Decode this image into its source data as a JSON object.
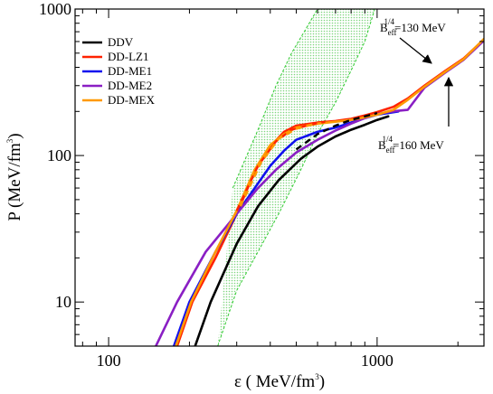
{
  "chart_data": {
    "type": "line",
    "x_scale": "log",
    "y_scale": "log",
    "xlim": [
      75,
      2500
    ],
    "ylim": [
      5,
      1000
    ],
    "xlabel": "ε ( MeV/fm",
    "xlabel_sup": "3",
    "xlabel_end": ")",
    "ylabel": "P (MeV/fm",
    "ylabel_sup": "3",
    "ylabel_end": ")",
    "x_ticks": [
      {
        "value": 100,
        "label": "100"
      },
      {
        "value": 1000,
        "label": "1000"
      }
    ],
    "y_ticks": [
      {
        "value": 10,
        "label": "10"
      },
      {
        "value": 100,
        "label": "100"
      },
      {
        "value": 1000,
        "label": "1000"
      }
    ],
    "legend_position": "top-left",
    "band": {
      "color": "#33cc33",
      "fill": "#9be39b",
      "upper": [
        [
          290,
          60
        ],
        [
          360,
          150
        ],
        [
          420,
          300
        ],
        [
          480,
          500
        ],
        [
          540,
          720
        ],
        [
          600,
          1000
        ]
      ],
      "lower": [
        [
          255,
          5
        ],
        [
          300,
          12
        ],
        [
          360,
          22
        ],
        [
          430,
          40
        ],
        [
          520,
          80
        ],
        [
          600,
          140
        ],
        [
          700,
          230
        ],
        [
          800,
          380
        ],
        [
          900,
          600
        ],
        [
          980,
          1000
        ]
      ]
    },
    "series": [
      {
        "name": "DDV",
        "color": "#000000",
        "width": 2.6,
        "points": [
          [
            210,
            5
          ],
          [
            240,
            10
          ],
          [
            300,
            25
          ],
          [
            360,
            45
          ],
          [
            430,
            68
          ],
          [
            520,
            95
          ],
          [
            600,
            115
          ],
          [
            700,
            135
          ],
          [
            800,
            150
          ],
          [
            900,
            162
          ],
          [
            1000,
            175
          ],
          [
            1100,
            185
          ]
        ]
      },
      {
        "name": "DD-LZ1",
        "color": "#ff2200",
        "width": 2.6,
        "points": [
          [
            180,
            5
          ],
          [
            205,
            10
          ],
          [
            250,
            20
          ],
          [
            300,
            40
          ],
          [
            350,
            78
          ],
          [
            400,
            115
          ],
          [
            450,
            145
          ],
          [
            500,
            160
          ],
          [
            600,
            168
          ],
          [
            700,
            172
          ],
          [
            800,
            178
          ],
          [
            900,
            188
          ],
          [
            1000,
            198
          ],
          [
            1150,
            215
          ],
          [
            1300,
            245
          ],
          [
            1500,
            300
          ],
          [
            1800,
            380
          ],
          [
            2100,
            460
          ],
          [
            2500,
            620
          ]
        ]
      },
      {
        "name": "DD-ME1",
        "color": "#1111ee",
        "width": 2.6,
        "points": [
          [
            175,
            5
          ],
          [
            200,
            10
          ],
          [
            250,
            22
          ],
          [
            300,
            40
          ],
          [
            350,
            60
          ],
          [
            400,
            85
          ],
          [
            450,
            108
          ],
          [
            500,
            128
          ],
          [
            600,
            145
          ],
          [
            700,
            155
          ],
          [
            800,
            168
          ],
          [
            900,
            180
          ],
          [
            1000,
            190
          ],
          [
            1100,
            195
          ],
          [
            1200,
            200
          ]
        ]
      },
      {
        "name": "DD-ME2",
        "color": "#8a1fc4",
        "width": 2.6,
        "points": [
          [
            150,
            5
          ],
          [
            180,
            10
          ],
          [
            230,
            22
          ],
          [
            300,
            40
          ],
          [
            360,
            60
          ],
          [
            420,
            80
          ],
          [
            500,
            105
          ],
          [
            600,
            128
          ],
          [
            700,
            148
          ],
          [
            800,
            165
          ],
          [
            900,
            180
          ],
          [
            1000,
            192
          ],
          [
            1100,
            198
          ],
          [
            1200,
            202
          ],
          [
            1300,
            205
          ],
          [
            1500,
            290
          ],
          [
            1800,
            370
          ],
          [
            2100,
            450
          ],
          [
            2500,
            610
          ]
        ]
      },
      {
        "name": "DD-MEX",
        "color": "#ff9900",
        "width": 2.6,
        "points": [
          [
            178,
            5
          ],
          [
            203,
            10
          ],
          [
            250,
            22
          ],
          [
            300,
            42
          ],
          [
            350,
            80
          ],
          [
            400,
            118
          ],
          [
            450,
            140
          ],
          [
            500,
            155
          ],
          [
            600,
            165
          ],
          [
            700,
            170
          ],
          [
            800,
            175
          ],
          [
            900,
            182
          ],
          [
            1000,
            190
          ],
          [
            1150,
            205
          ],
          [
            1300,
            240
          ],
          [
            1500,
            295
          ],
          [
            1800,
            375
          ],
          [
            2100,
            455
          ],
          [
            2500,
            625
          ]
        ]
      }
    ],
    "dashed_series": [
      {
        "color": "#000000",
        "points": [
          [
            500,
            110
          ],
          [
            600,
            140
          ],
          [
            700,
            160
          ],
          [
            800,
            175
          ],
          [
            900,
            185
          ],
          [
            1000,
            195
          ]
        ]
      },
      {
        "color": "#ff2200",
        "points": [
          [
            300,
            42
          ],
          [
            360,
            85
          ],
          [
            420,
            125
          ],
          [
            480,
            150
          ],
          [
            560,
            162
          ],
          [
            640,
            170
          ]
        ]
      },
      {
        "color": "#ff9900",
        "points": [
          [
            310,
            45
          ],
          [
            370,
            90
          ],
          [
            430,
            130
          ],
          [
            500,
            152
          ],
          [
            580,
            164
          ]
        ]
      }
    ],
    "annotations": [
      {
        "text": "B",
        "sub": "eff",
        "sup": "1/4",
        "rest": "=130 MeV",
        "pointer": [
          1800,
          390
        ],
        "label_at": [
          1300,
          760
        ]
      },
      {
        "text": "B",
        "sub": "eff",
        "sup": "1/4",
        "rest": "=160 MeV",
        "pointer": [
          1800,
          300
        ],
        "label_at": [
          1050,
          62
        ]
      }
    ]
  }
}
